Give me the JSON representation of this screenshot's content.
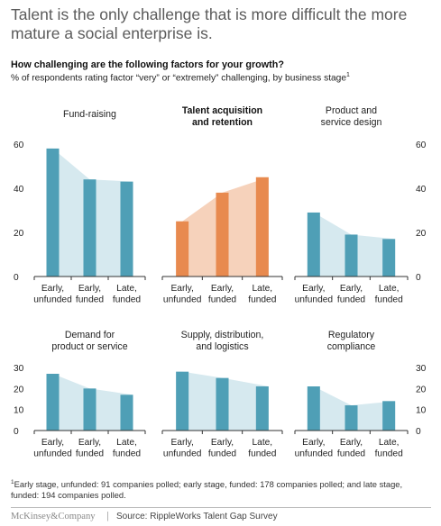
{
  "page": {
    "title": "Talent is the only challenge that is more difficult the more mature a social enterprise is.",
    "subtitle": "How challenging are the following factors for your growth?",
    "subnote": "% of respondents rating factor “very” or “extremely” challenging, by business stage",
    "subnote_marker": "1",
    "footnote_marker": "1",
    "footnote": "Early stage, unfunded: 91 companies polled; early stage, funded: 178 companies polled; and late stage, funded: 194 companies polled.",
    "brand": "McKinsey&Company",
    "separator": "|",
    "source": "Source: RippleWorks Talent Gap Survey"
  },
  "colors": {
    "bar_teal": "#4f9fb6",
    "area_teal": "#d6e9ef",
    "bar_orange": "#e88a4f",
    "area_orange": "#f6d2bb"
  },
  "chart_data": [
    {
      "type": "bar",
      "title": "Fund-raising",
      "categories": [
        "Early,\nunfunded",
        "Early,\nfunded",
        "Late,\nfunded"
      ],
      "values": [
        58,
        44,
        43
      ],
      "ylim": [
        0,
        60
      ],
      "yticks": [
        0,
        20,
        40,
        60
      ],
      "ytick_side": "left",
      "highlight": false
    },
    {
      "type": "bar",
      "title": "Talent acquisition\nand retention",
      "categories": [
        "Early,\nunfunded",
        "Early,\nfunded",
        "Late,\nfunded"
      ],
      "values": [
        25,
        38,
        45
      ],
      "ylim": [
        0,
        60
      ],
      "yticks": [],
      "ytick_side": "none",
      "highlight": true
    },
    {
      "type": "bar",
      "title": "Product and\nservice design",
      "categories": [
        "Early,\nunfunded",
        "Early,\nfunded",
        "Late,\nfunded"
      ],
      "values": [
        29,
        19,
        17
      ],
      "ylim": [
        0,
        60
      ],
      "yticks": [
        0,
        20,
        40,
        60
      ],
      "ytick_side": "right",
      "highlight": false
    },
    {
      "type": "bar",
      "title": "Demand for\nproduct or service",
      "categories": [
        "Early,\nunfunded",
        "Early,\nfunded",
        "Late,\nfunded"
      ],
      "values": [
        27,
        20,
        17
      ],
      "ylim": [
        0,
        30
      ],
      "yticks": [
        0,
        10,
        20,
        30
      ],
      "ytick_side": "left",
      "highlight": false
    },
    {
      "type": "bar",
      "title": "Supply, distribution,\nand logistics",
      "categories": [
        "Early,\nunfunded",
        "Early,\nfunded",
        "Late,\nfunded"
      ],
      "values": [
        28,
        25,
        21
      ],
      "ylim": [
        0,
        30
      ],
      "yticks": [],
      "ytick_side": "none",
      "highlight": false
    },
    {
      "type": "bar",
      "title": "Regulatory\ncompliance",
      "categories": [
        "Early,\nunfunded",
        "Early,\nfunded",
        "Late,\nfunded"
      ],
      "values": [
        21,
        12,
        14
      ],
      "ylim": [
        0,
        30
      ],
      "yticks": [
        0,
        10,
        20,
        30
      ],
      "ytick_side": "right",
      "highlight": false
    }
  ]
}
